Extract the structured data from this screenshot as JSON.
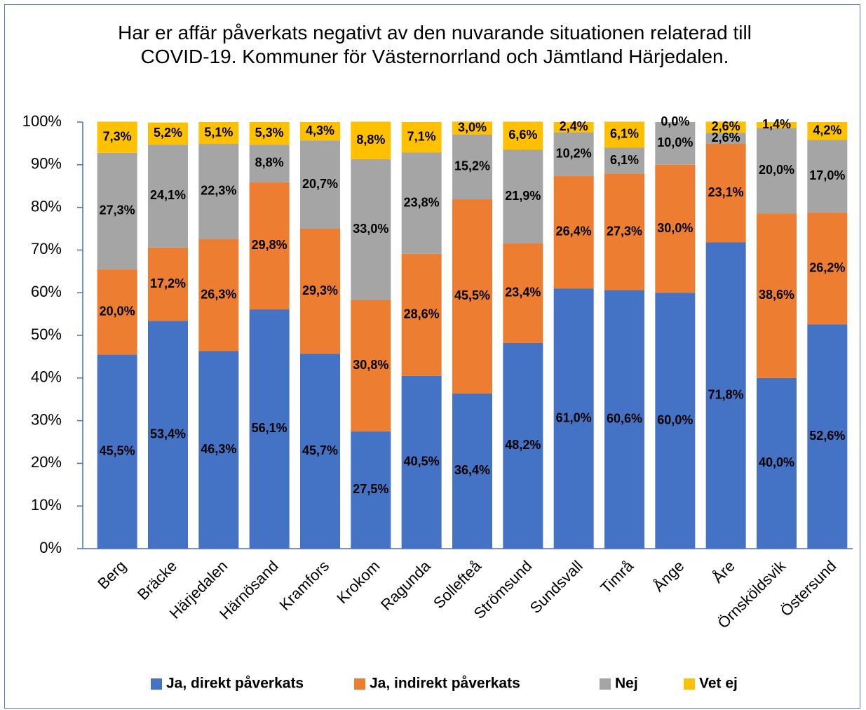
{
  "chart_data": {
    "type": "stacked_bar",
    "title": "Har er affär påverkats negativt av den nuvarande situationen relaterad till COVID-19. Kommuner för Västernorrland och Jämtland Härjedalen.",
    "categories": [
      "Berg",
      "Bräcke",
      "Härjedalen",
      "Härnösand",
      "Kramfors",
      "Krokom",
      "Ragunda",
      "Sollefteå",
      "Strömsund",
      "Sundsvall",
      "Timrå",
      "Ånge",
      "Åre",
      "Örnsköldsvik",
      "Östersund"
    ],
    "series": [
      {
        "name": "Ja, direkt påverkats",
        "color": "#4472c4",
        "values": [
          45.5,
          53.4,
          46.3,
          56.1,
          45.7,
          27.5,
          40.5,
          36.4,
          48.2,
          61.0,
          60.6,
          60.0,
          71.8,
          40.0,
          52.6
        ],
        "value_labels": [
          "45,5%",
          "53,4%",
          "46,3%",
          "56,1%",
          "45,7%",
          "27,5%",
          "40,5%",
          "36,4%",
          "48,2%",
          "61,0%",
          "60,6%",
          "60,0%",
          "71,8%",
          "40,0%",
          "52,6%"
        ]
      },
      {
        "name": "Ja, indirekt påverkats",
        "color": "#ed7d31",
        "values": [
          20.0,
          17.2,
          26.3,
          29.8,
          29.3,
          30.8,
          28.6,
          45.5,
          23.4,
          26.4,
          27.3,
          30.0,
          23.1,
          38.6,
          26.2
        ],
        "value_labels": [
          "20,0%",
          "17,2%",
          "26,3%",
          "29,8%",
          "29,3%",
          "30,8%",
          "28,6%",
          "45,5%",
          "23,4%",
          "26,4%",
          "27,3%",
          "30,0%",
          "23,1%",
          "38,6%",
          "26,2%"
        ]
      },
      {
        "name": "Nej",
        "color": "#a5a5a5",
        "values": [
          27.3,
          24.1,
          22.3,
          8.8,
          20.7,
          33.0,
          23.8,
          15.2,
          21.9,
          10.2,
          6.1,
          10.0,
          2.6,
          20.0,
          17.0
        ],
        "value_labels": [
          "27,3%",
          "24,1%",
          "22,3%",
          "8,8%",
          "20,7%",
          "33,0%",
          "23,8%",
          "15,2%",
          "21,9%",
          "10,2%",
          "6,1%",
          "10,0%",
          "2,6%",
          "20,0%",
          "17,0%"
        ]
      },
      {
        "name": "Vet ej",
        "color": "#ffc000",
        "values": [
          7.3,
          5.2,
          5.1,
          5.3,
          4.3,
          8.8,
          7.1,
          3.0,
          6.6,
          2.4,
          6.1,
          0.0,
          2.6,
          1.4,
          4.2
        ],
        "value_labels": [
          "7,3%",
          "5,2%",
          "5,1%",
          "5,3%",
          "4,3%",
          "8,8%",
          "7,1%",
          "3,0%",
          "6,6%",
          "2,4%",
          "6,1%",
          "0,0%",
          "2,6%",
          "1,4%",
          "4,2%"
        ]
      }
    ],
    "ylim": [
      0,
      100
    ],
    "yticks": [
      {
        "value": 0,
        "label": "0%"
      },
      {
        "value": 10,
        "label": "10%"
      },
      {
        "value": 20,
        "label": "20%"
      },
      {
        "value": 30,
        "label": "30%"
      },
      {
        "value": 40,
        "label": "40%"
      },
      {
        "value": 50,
        "label": "50%"
      },
      {
        "value": 60,
        "label": "60%"
      },
      {
        "value": 70,
        "label": "70%"
      },
      {
        "value": 80,
        "label": "80%"
      },
      {
        "value": 90,
        "label": "90%"
      },
      {
        "value": 100,
        "label": "100%"
      }
    ],
    "grid": false,
    "legend": "bottom"
  }
}
